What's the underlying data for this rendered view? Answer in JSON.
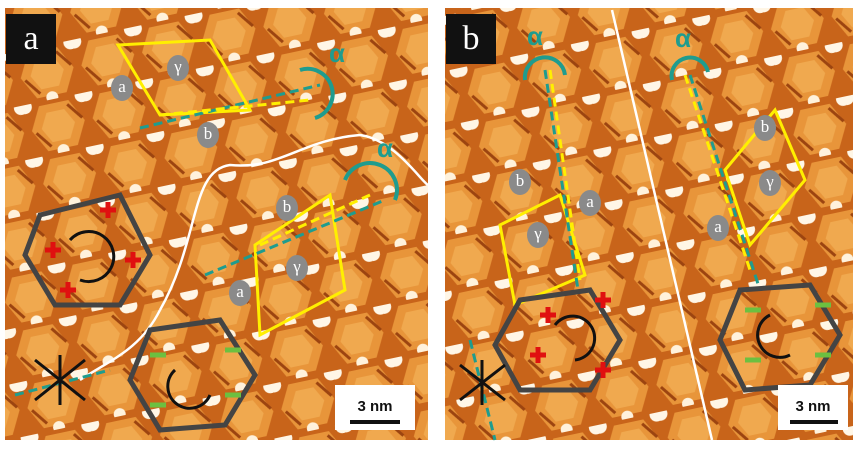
{
  "panels": [
    {
      "label": "a",
      "scale_bar": "3 nm",
      "annotations": [
        "α",
        "α",
        "γ",
        "γ",
        "a",
        "a",
        "b",
        "b"
      ]
    },
    {
      "label": "b",
      "scale_bar": "3 nm",
      "annotations": [
        "α",
        "α",
        "γ",
        "γ",
        "a",
        "a",
        "b",
        "b"
      ]
    }
  ]
}
